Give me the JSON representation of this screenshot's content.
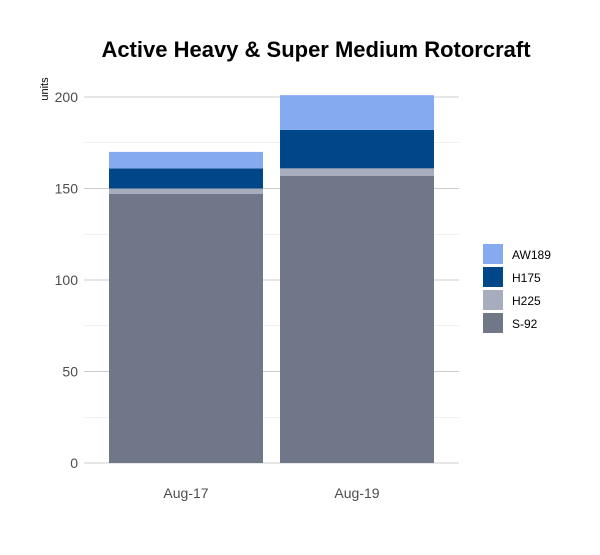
{
  "chart_data": {
    "type": "bar",
    "stacked": true,
    "title": "Active Heavy & Super Medium Rotorcraft",
    "xlabel": "",
    "ylabel": "units",
    "categories": [
      "Aug-17",
      "Aug-19"
    ],
    "series": [
      {
        "name": "S-92",
        "values": [
          147,
          157
        ],
        "color": "#707789"
      },
      {
        "name": "H225",
        "values": [
          3,
          4
        ],
        "color": "#a7adbc"
      },
      {
        "name": "H175",
        "values": [
          11,
          21
        ],
        "color": "#00478a"
      },
      {
        "name": "AW189",
        "values": [
          9,
          19
        ],
        "color": "#85aaf0"
      }
    ],
    "ylim": [
      0,
      210
    ],
    "yticks": [
      0,
      50,
      100,
      150,
      200
    ],
    "grid": true,
    "legend_position": "right",
    "legend_order": [
      "AW189",
      "H175",
      "H225",
      "S-92"
    ]
  }
}
